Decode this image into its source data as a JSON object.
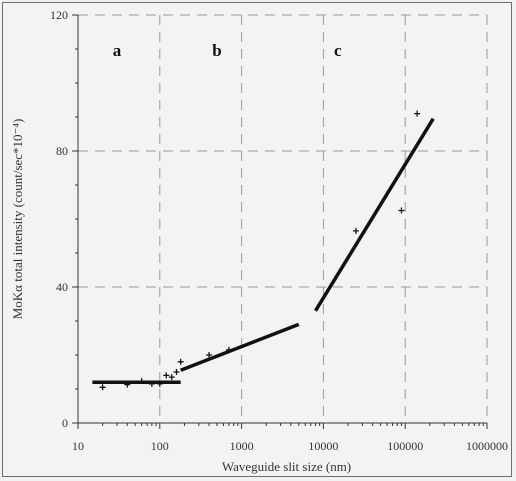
{
  "chart_data": {
    "type": "scatter",
    "title": "",
    "xlabel": "Waveguide slit size (nm)",
    "ylabel": "MoKα total intensity (count/sec*10⁻⁴)",
    "x_scale": "log",
    "xlim": [
      10,
      1000000
    ],
    "ylim": [
      0,
      120
    ],
    "x_tick_labels": [
      "10",
      "100",
      "1000",
      "10000",
      "100000",
      "1000000"
    ],
    "x_ticks": [
      10,
      100,
      1000,
      10000,
      100000,
      1000000
    ],
    "y_tick_labels": [
      "0",
      "40",
      "80",
      "120"
    ],
    "y_ticks": [
      0,
      40,
      80,
      120
    ],
    "grid": true,
    "region_labels": [
      {
        "text": "a",
        "x": 30,
        "y": 108
      },
      {
        "text": "b",
        "x": 500,
        "y": 108
      },
      {
        "text": "c",
        "x": 15000,
        "y": 108
      }
    ],
    "points": [
      {
        "x": 20,
        "y": 10.5
      },
      {
        "x": 40,
        "y": 11.3
      },
      {
        "x": 60,
        "y": 12.3
      },
      {
        "x": 80,
        "y": 11.5
      },
      {
        "x": 100,
        "y": 11.5
      },
      {
        "x": 120,
        "y": 14
      },
      {
        "x": 140,
        "y": 13.5
      },
      {
        "x": 160,
        "y": 15
      },
      {
        "x": 180,
        "y": 18
      },
      {
        "x": 400,
        "y": 20
      },
      {
        "x": 700,
        "y": 21.5
      },
      {
        "x": 25000,
        "y": 56.5
      },
      {
        "x": 90000,
        "y": 62.5
      },
      {
        "x": 140000,
        "y": 91
      }
    ],
    "fit_lines": [
      {
        "segment": "a",
        "x": [
          15,
          180
        ],
        "y": [
          12,
          12
        ]
      },
      {
        "segment": "b",
        "x": [
          180,
          5000
        ],
        "y": [
          15.5,
          29
        ]
      },
      {
        "segment": "c",
        "x": [
          8000,
          220000
        ],
        "y": [
          33,
          89.5
        ]
      }
    ]
  }
}
